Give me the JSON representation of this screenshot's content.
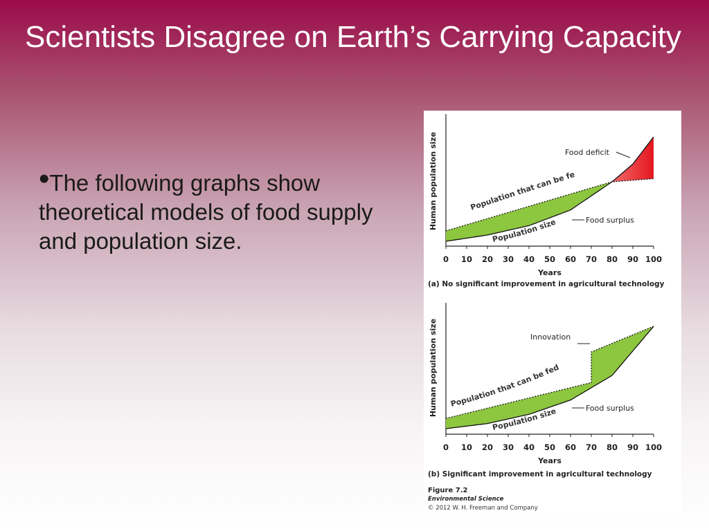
{
  "slide": {
    "title": "Scientists Disagree on Earth’s Carrying Capacity",
    "bullet_text": "The following graphs show theoretical models of food supply and population size."
  },
  "figure": {
    "caption_number": "Figure 7.2",
    "caption_book": "Environmental Science",
    "caption_copyright": "© 2012 W. H. Freeman and Company"
  },
  "chart_data": [
    {
      "type": "area",
      "panel_label": "(a) No significant improvement in agricultural technology",
      "xlabel": "Years",
      "ylabel": "Human population size",
      "x_ticks": [
        0,
        10,
        20,
        30,
        40,
        50,
        60,
        70,
        80,
        90,
        100
      ],
      "xlim": [
        0,
        100
      ],
      "series": [
        {
          "name": "Population that can be fed by food supply",
          "x": [
            0,
            80,
            100
          ],
          "y": [
            0.1,
            0.57,
            0.6
          ]
        },
        {
          "name": "Population size",
          "x": [
            0,
            20,
            40,
            60,
            80,
            90,
            100
          ],
          "y": [
            0.0,
            0.06,
            0.15,
            0.3,
            0.57,
            0.74,
            1.0
          ]
        }
      ],
      "annotations": [
        "Food deficit",
        "Food surplus",
        "Population that can be fed by food supply",
        "Population size"
      ],
      "colors": {
        "surplus": "#8dc63f",
        "deficit": "#e8262b"
      }
    },
    {
      "type": "area",
      "panel_label": "(b) Significant improvement in agricultural technology",
      "xlabel": "Years",
      "ylabel": "Human population size",
      "x_ticks": [
        0,
        10,
        20,
        30,
        40,
        50,
        60,
        70,
        80,
        90,
        100
      ],
      "xlim": [
        0,
        100
      ],
      "series": [
        {
          "name": "Population that can be fed by food supply",
          "x": [
            0,
            70,
            70,
            100
          ],
          "y": [
            0.1,
            0.45,
            0.75,
            1.0
          ]
        },
        {
          "name": "Population size",
          "x": [
            0,
            20,
            40,
            60,
            80,
            100
          ],
          "y": [
            0.0,
            0.05,
            0.14,
            0.28,
            0.52,
            1.0
          ]
        }
      ],
      "annotations": [
        "Innovation",
        "Food surplus",
        "Population that can be fed by food supply",
        "Population size"
      ],
      "colors": {
        "surplus": "#8dc63f"
      }
    }
  ]
}
